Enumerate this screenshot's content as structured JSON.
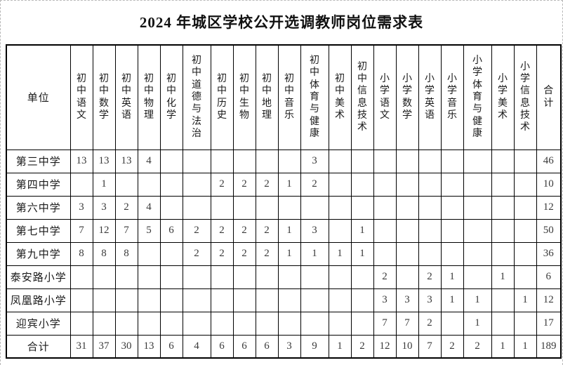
{
  "title": "2024 年城区学校公开选调教师岗位需求表",
  "table": {
    "unit_header": "单位",
    "total_header": "合计",
    "columns": [
      "初中语文",
      "初中数学",
      "初中英语",
      "初中物理",
      "初中化学",
      "初中道德与法治",
      "初中历史",
      "初中生物",
      "初中地理",
      "初中音乐",
      "初中体育与健康",
      "初中美术",
      "初中信息技术",
      "小学语文",
      "小学数学",
      "小学英语",
      "小学音乐",
      "小学体育与健康",
      "小学美术",
      "小学信息技术"
    ],
    "rows": [
      {
        "unit": "第三中学",
        "values": [
          "13",
          "13",
          "13",
          "4",
          "",
          "",
          "",
          "",
          "",
          "",
          "3",
          "",
          "",
          "",
          "",
          "",
          "",
          "",
          "",
          ""
        ],
        "total": "46"
      },
      {
        "unit": "第四中学",
        "values": [
          "",
          "1",
          "",
          "",
          "",
          "",
          "2",
          "2",
          "2",
          "1",
          "2",
          "",
          "",
          "",
          "",
          "",
          "",
          "",
          "",
          ""
        ],
        "total": "10"
      },
      {
        "unit": "第六中学",
        "values": [
          "3",
          "3",
          "2",
          "4",
          "",
          "",
          "",
          "",
          "",
          "",
          "",
          "",
          "",
          "",
          "",
          "",
          "",
          "",
          "",
          ""
        ],
        "total": "12"
      },
      {
        "unit": "第七中学",
        "values": [
          "7",
          "12",
          "7",
          "5",
          "6",
          "2",
          "2",
          "2",
          "2",
          "1",
          "3",
          "",
          "1",
          "",
          "",
          "",
          "",
          "",
          "",
          ""
        ],
        "total": "50"
      },
      {
        "unit": "第九中学",
        "values": [
          "8",
          "8",
          "8",
          "",
          "",
          "2",
          "2",
          "2",
          "2",
          "1",
          "1",
          "1",
          "1",
          "",
          "",
          "",
          "",
          "",
          "",
          ""
        ],
        "total": "36"
      },
      {
        "unit": "泰安路小学",
        "values": [
          "",
          "",
          "",
          "",
          "",
          "",
          "",
          "",
          "",
          "",
          "",
          "",
          "",
          "2",
          "",
          "2",
          "1",
          "",
          "1",
          ""
        ],
        "total": "6"
      },
      {
        "unit": "凤凰路小学",
        "values": [
          "",
          "",
          "",
          "",
          "",
          "",
          "",
          "",
          "",
          "",
          "",
          "",
          "",
          "3",
          "3",
          "3",
          "1",
          "1",
          "",
          "1"
        ],
        "total": "12"
      },
      {
        "unit": "迎宾小学",
        "values": [
          "",
          "",
          "",
          "",
          "",
          "",
          "",
          "",
          "",
          "",
          "",
          "",
          "",
          "7",
          "7",
          "2",
          "",
          "1",
          "",
          ""
        ],
        "total": "17"
      },
      {
        "unit": "合计",
        "is_total": true,
        "values": [
          "31",
          "37",
          "30",
          "13",
          "6",
          "4",
          "6",
          "6",
          "6",
          "3",
          "9",
          "1",
          "2",
          "12",
          "10",
          "7",
          "2",
          "2",
          "1",
          "1"
        ],
        "total": "189"
      }
    ]
  }
}
